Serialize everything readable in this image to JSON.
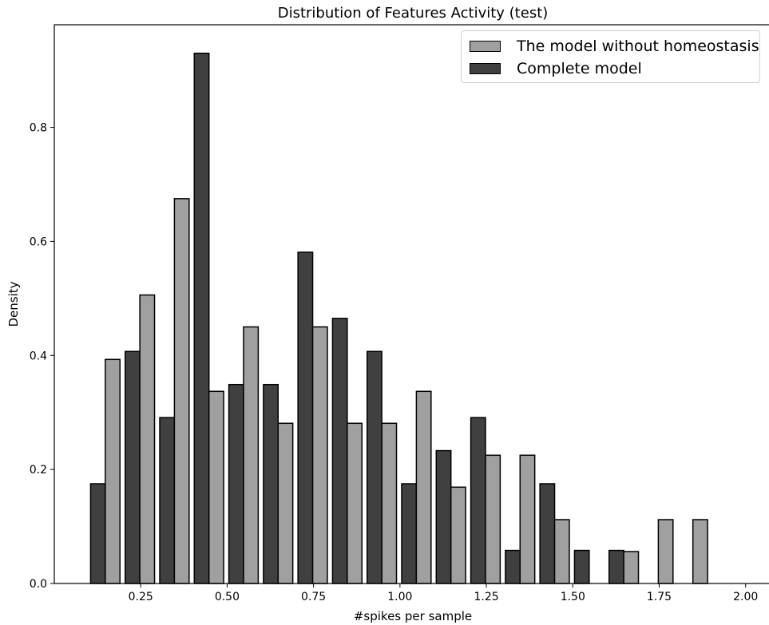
{
  "chart_data": {
    "type": "bar",
    "title": "Distribution of Features Activity (test)",
    "xlabel": "#spikes per sample",
    "ylabel": "Density",
    "xlim": [
      0.0,
      2.07
    ],
    "ylim": [
      0.0,
      0.98
    ],
    "xticks": [
      0.25,
      0.5,
      0.75,
      1.0,
      1.25,
      1.5,
      1.75,
      2.0
    ],
    "xtick_labels": [
      "0.25",
      "0.50",
      "0.75",
      "1.00",
      "1.25",
      "1.50",
      "1.75",
      "2.00"
    ],
    "yticks": [
      0.0,
      0.2,
      0.4,
      0.6,
      0.8
    ],
    "ytick_labels": [
      "0.0",
      "0.2",
      "0.4",
      "0.6",
      "0.8"
    ],
    "bin_edges": [
      0.1,
      0.2,
      0.3,
      0.4,
      0.5,
      0.6,
      0.7,
      0.8,
      0.9,
      1.0,
      1.1,
      1.2,
      1.3,
      1.4,
      1.5,
      1.6,
      1.7,
      1.8,
      1.9,
      2.0
    ],
    "series": [
      {
        "name": "The model without homeostasis",
        "color": "#a0a0a0",
        "values": [
          0.393,
          0.506,
          0.675,
          0.337,
          0.45,
          0.281,
          0.45,
          0.281,
          0.281,
          0.337,
          0.169,
          0.225,
          0.225,
          0.112,
          0.0,
          0.056,
          0.112,
          0.112,
          0.0
        ]
      },
      {
        "name": "Complete model",
        "color": "#404040",
        "values": [
          0.175,
          0.407,
          0.291,
          0.93,
          0.349,
          0.349,
          0.581,
          0.465,
          0.407,
          0.175,
          0.233,
          0.291,
          0.058,
          0.175,
          0.058,
          0.058,
          0.0,
          0.0,
          0.0
        ]
      }
    ],
    "legend_position": "top-right",
    "grid": false
  }
}
